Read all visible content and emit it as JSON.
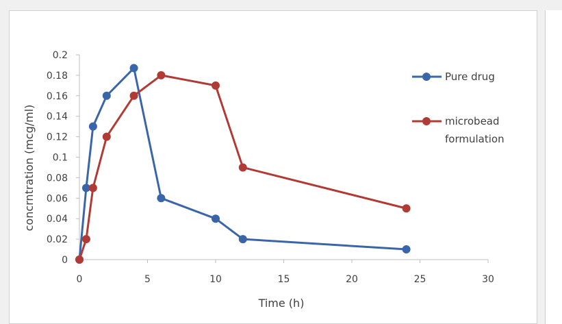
{
  "chart_data": {
    "type": "line",
    "title": "",
    "xlabel": "Time (h)",
    "ylabel": "concrntration (mcg/ml)",
    "xlim": [
      0,
      30
    ],
    "ylim": [
      0,
      0.2
    ],
    "x_ticks": [
      "0",
      "5",
      "10",
      "15",
      "20",
      "25",
      "30"
    ],
    "y_ticks": [
      "0",
      "0.02",
      "0.04",
      "0.06",
      "0.08",
      "0.1",
      "0.12",
      "0.14",
      "0.16",
      "0.18",
      "0.2"
    ],
    "grid": false,
    "legend_position": "right",
    "series": [
      {
        "name": "Pure drug",
        "color": "#3a65a8",
        "points": [
          [
            0,
            0
          ],
          [
            0.5,
            0.07
          ],
          [
            1,
            0.13
          ],
          [
            2,
            0.16
          ],
          [
            4,
            0.187
          ],
          [
            6,
            0.06
          ],
          [
            10,
            0.04
          ],
          [
            12,
            0.02
          ],
          [
            24,
            0.01
          ]
        ]
      },
      {
        "name": "microbead formulation",
        "legend_lines": [
          "microbead",
          "formulation"
        ],
        "color": "#b03a35",
        "points": [
          [
            0,
            0
          ],
          [
            0.5,
            0.02
          ],
          [
            1,
            0.07
          ],
          [
            2,
            0.12
          ],
          [
            4,
            0.16
          ],
          [
            6,
            0.18
          ],
          [
            10,
            0.17
          ],
          [
            12,
            0.09
          ],
          [
            24,
            0.05
          ]
        ]
      }
    ]
  }
}
